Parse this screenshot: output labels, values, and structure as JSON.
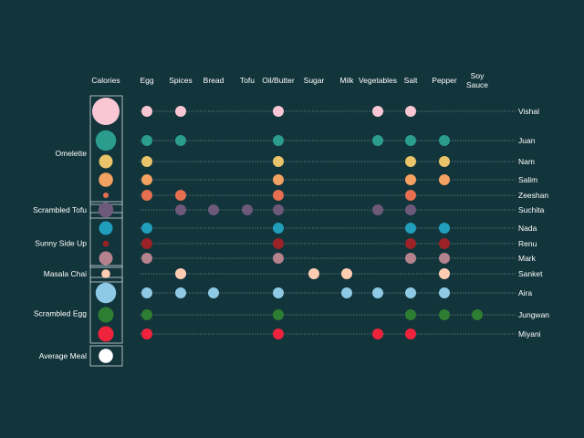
{
  "chart_data": {
    "type": "scatter",
    "title": "",
    "calories_label": "Calories",
    "ingredients": [
      "Egg",
      "Spices",
      "Bread",
      "Tofu",
      "Oil/Butter",
      "Sugar",
      "Milk",
      "Vegetables",
      "Salt",
      "Pepper",
      "Soy Sauce"
    ],
    "groups": [
      {
        "meal": "Omelette",
        "people": [
          "Vishal",
          "Juan",
          "Nam",
          "Salim",
          "Zeeshan"
        ]
      },
      {
        "meal": "Scrambled Tofu",
        "people": [
          "Suchita"
        ]
      },
      {
        "meal": "Sunny Side Up",
        "people": [
          "Nada",
          "Renu",
          "Mark"
        ]
      },
      {
        "meal": "Masala Chai",
        "people": [
          "Sanket"
        ]
      },
      {
        "meal": "Scrambled Egg",
        "people": [
          "Aira",
          "Jungwan",
          "Miyani"
        ]
      },
      {
        "meal": "Average Meal",
        "people": []
      }
    ],
    "rows": [
      {
        "person": "Vishal",
        "color": "#f9c6d3",
        "calorie_size": 1.0,
        "ingredients": [
          "Egg",
          "Spices",
          "Oil/Butter",
          "Vegetables",
          "Salt"
        ]
      },
      {
        "person": "Juan",
        "color": "#2a9d8f",
        "calorie_size": 0.75,
        "ingredients": [
          "Egg",
          "Spices",
          "Oil/Butter",
          "Vegetables",
          "Salt",
          "Pepper"
        ]
      },
      {
        "person": "Nam",
        "color": "#e9c46a",
        "calorie_size": 0.5,
        "ingredients": [
          "Egg",
          "Oil/Butter",
          "Salt",
          "Pepper"
        ]
      },
      {
        "person": "Salim",
        "color": "#f4a261",
        "calorie_size": 0.52,
        "ingredients": [
          "Egg",
          "Oil/Butter",
          "Salt",
          "Pepper"
        ]
      },
      {
        "person": "Zeeshan",
        "color": "#e76f51",
        "calorie_size": 0.2,
        "ingredients": [
          "Egg",
          "Spices",
          "Oil/Butter",
          "Salt"
        ]
      },
      {
        "person": "Suchita",
        "color": "#6d597a",
        "calorie_size": 0.55,
        "ingredients": [
          "Spices",
          "Bread",
          "Tofu",
          "Oil/Butter",
          "Vegetables",
          "Salt"
        ]
      },
      {
        "person": "Nada",
        "color": "#219ebc",
        "calorie_size": 0.5,
        "ingredients": [
          "Egg",
          "Oil/Butter",
          "Salt",
          "Pepper"
        ]
      },
      {
        "person": "Renu",
        "color": "#9b2226",
        "calorie_size": 0.22,
        "ingredients": [
          "Egg",
          "Oil/Butter",
          "Salt",
          "Pepper"
        ]
      },
      {
        "person": "Mark",
        "color": "#b5838d",
        "calorie_size": 0.5,
        "ingredients": [
          "Egg",
          "Oil/Butter",
          "Salt",
          "Pepper"
        ]
      },
      {
        "person": "Sanket",
        "color": "#ffcdb2",
        "calorie_size": 0.32,
        "ingredients": [
          "Spices",
          "Sugar",
          "Milk",
          "Pepper"
        ]
      },
      {
        "person": "Aira",
        "color": "#8ecae6",
        "calorie_size": 0.75,
        "ingredients": [
          "Egg",
          "Spices",
          "Bread",
          "Oil/Butter",
          "Milk",
          "Vegetables",
          "Salt",
          "Pepper"
        ]
      },
      {
        "person": "Jungwan",
        "color": "#2d7d32",
        "calorie_size": 0.57,
        "ingredients": [
          "Egg",
          "Oil/Butter",
          "Salt",
          "Pepper",
          "Soy Sauce"
        ]
      },
      {
        "person": "Miyani",
        "color": "#ef233c",
        "calorie_size": 0.57,
        "ingredients": [
          "Egg",
          "Oil/Butter",
          "Vegetables",
          "Salt"
        ]
      }
    ],
    "average": {
      "color": "#ffffff",
      "calorie_size": 0.52
    },
    "colors": {
      "background": "#12343b",
      "box_stroke": "#cfd8dc",
      "connector": "#9fb4b8"
    }
  }
}
